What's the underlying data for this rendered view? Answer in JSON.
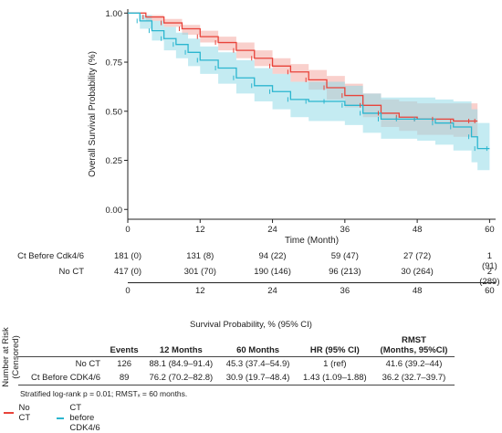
{
  "chart_data": {
    "type": "line",
    "xlabel": "Time (Month)",
    "ylabel": "Overall Survival Probability (%)",
    "xlim": [
      0,
      61
    ],
    "ylim": [
      -0.05,
      1.02
    ],
    "xticks": [
      0,
      12,
      24,
      36,
      48,
      60
    ],
    "yticks": [
      0.0,
      0.25,
      0.5,
      0.75,
      1.0
    ],
    "ytick_labels": [
      "0.00",
      "0.25",
      "0.50",
      "0.75",
      "1.00"
    ],
    "grid": false,
    "series": [
      {
        "name": "No CT",
        "color": "#e8433a",
        "band_color": "#f4a9a2",
        "x": [
          0,
          3,
          6,
          9,
          12,
          15,
          18,
          21,
          24,
          27,
          30,
          33,
          36,
          39,
          42,
          45,
          48,
          51,
          54,
          57,
          58
        ],
        "y": [
          1.0,
          0.98,
          0.95,
          0.92,
          0.88,
          0.85,
          0.81,
          0.77,
          0.73,
          0.7,
          0.66,
          0.62,
          0.58,
          0.53,
          0.49,
          0.47,
          0.46,
          0.46,
          0.45,
          0.45,
          0.45
        ],
        "lower": [
          1.0,
          0.96,
          0.93,
          0.89,
          0.85,
          0.81,
          0.77,
          0.73,
          0.69,
          0.65,
          0.61,
          0.56,
          0.52,
          0.47,
          0.42,
          0.4,
          0.38,
          0.38,
          0.37,
          0.37,
          0.37
        ],
        "upper": [
          1.0,
          0.99,
          0.97,
          0.94,
          0.91,
          0.88,
          0.85,
          0.81,
          0.77,
          0.74,
          0.71,
          0.68,
          0.64,
          0.59,
          0.56,
          0.55,
          0.54,
          0.54,
          0.54,
          0.54,
          0.54
        ]
      },
      {
        "name": "CT before CDK4/6",
        "color": "#2bb6cf",
        "band_color": "#93dbe8",
        "x": [
          0,
          2,
          4,
          6,
          8,
          10,
          12,
          15,
          18,
          21,
          24,
          27,
          30,
          33,
          36,
          39,
          42,
          45,
          48,
          51,
          54,
          57,
          58,
          60
        ],
        "y": [
          1.0,
          0.96,
          0.91,
          0.87,
          0.84,
          0.8,
          0.76,
          0.72,
          0.67,
          0.63,
          0.6,
          0.56,
          0.55,
          0.55,
          0.53,
          0.49,
          0.46,
          0.46,
          0.46,
          0.44,
          0.42,
          0.37,
          0.31,
          0.31
        ],
        "lower": [
          1.0,
          0.92,
          0.86,
          0.81,
          0.77,
          0.73,
          0.69,
          0.64,
          0.59,
          0.55,
          0.51,
          0.47,
          0.45,
          0.45,
          0.43,
          0.39,
          0.36,
          0.36,
          0.35,
          0.33,
          0.3,
          0.24,
          0.2,
          0.2
        ],
        "upper": [
          1.0,
          0.99,
          0.96,
          0.93,
          0.9,
          0.87,
          0.83,
          0.8,
          0.76,
          0.72,
          0.69,
          0.65,
          0.65,
          0.65,
          0.63,
          0.59,
          0.57,
          0.57,
          0.57,
          0.56,
          0.55,
          0.51,
          0.44,
          0.44
        ]
      }
    ],
    "legend": {
      "placement": "bottom-left"
    }
  },
  "risk_table": {
    "axis_label_line1": "Number at Risk",
    "axis_label_line2": "(Censored)",
    "rows": [
      {
        "name": "Ct Before Cdk4/6",
        "cells": [
          "181 (0)",
          "131 (8)",
          "94 (22)",
          "59 (47)",
          "27 (72)",
          "1 (91)"
        ]
      },
      {
        "name": "No CT",
        "cells": [
          "417 (0)",
          "301 (70)",
          "190 (146)",
          "96 (213)",
          "30 (264)",
          "2 (289)"
        ]
      }
    ],
    "times": [
      "0",
      "12",
      "24",
      "36",
      "48",
      "60"
    ]
  },
  "survival_table": {
    "caption": "Survival Probability, % (95% CI)",
    "headers": [
      "",
      "Events",
      "12 Months",
      "60 Months",
      "HR (95% CI)",
      "RMST\n(Months, 95%CI)"
    ],
    "header_line1": "RMST",
    "header_line2": "(Months, 95%CI)",
    "rows": [
      [
        "No CT",
        "126",
        "88.1 (84.9–91.4)",
        "45.3 (37.4–54.9)",
        "1 (ref)",
        "41.6 (39.2–44)"
      ],
      [
        "Ct Before CDK4/6",
        "89",
        "76.2 (70.2–82.8)",
        "30.9 (19.7–48.4)",
        "1.43 (1.09–1.88)",
        "36.2 (32.7–39.7)"
      ]
    ]
  },
  "footnote": "Stratified log-rank p = 0.01; RMSTₓ = 60 months.",
  "legend": {
    "items": [
      {
        "label": "No CT",
        "color": "#e8433a"
      },
      {
        "label": "CT before CDK4/6",
        "color": "#2bb6cf"
      }
    ]
  }
}
